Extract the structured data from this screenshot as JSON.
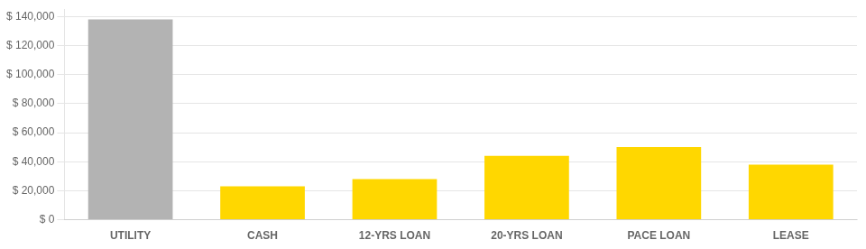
{
  "chart_data": {
    "type": "bar",
    "categories": [
      "UTILITY",
      "CASH",
      "12-YRS LOAN",
      "20-YRS LOAN",
      "PACE LOAN",
      "LEASE"
    ],
    "values": [
      138000,
      23000,
      28000,
      44000,
      50000,
      38000
    ],
    "colors": [
      "#b3b3b3",
      "#FFD700",
      "#FFD700",
      "#FFD700",
      "#FFD700",
      "#FFD700"
    ],
    "ylim": [
      0,
      145000
    ],
    "yticks": [
      {
        "value": 0,
        "label": "$ 0"
      },
      {
        "value": 20000,
        "label": "$ 20,000"
      },
      {
        "value": 40000,
        "label": "$ 40,000"
      },
      {
        "value": 60000,
        "label": "$ 60,000"
      },
      {
        "value": 80000,
        "label": "$ 80,000"
      },
      {
        "value": 100000,
        "label": "$ 100,000"
      },
      {
        "value": 120000,
        "label": "$ 120,000"
      },
      {
        "value": 140000,
        "label": "$ 140,000"
      }
    ],
    "grid": true
  }
}
